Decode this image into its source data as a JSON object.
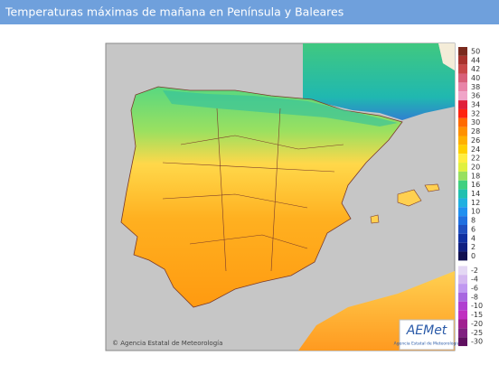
{
  "header": {
    "title": "Temperaturas máximas de mañana en Península y Baleares"
  },
  "map": {
    "credit": "© Agencia Estatal de Meteorología"
  },
  "logo": {
    "name": "AEMet",
    "subtitle": "Agencia Estatal de Meteorología"
  },
  "legend": {
    "items": [
      {
        "label": 50,
        "color": "#7a2a1e"
      },
      {
        "label": 44,
        "color": "#a8322c"
      },
      {
        "label": 42,
        "color": "#c84848"
      },
      {
        "label": 40,
        "color": "#d8607a"
      },
      {
        "label": 38,
        "color": "#e884a8"
      },
      {
        "label": 36,
        "color": "#f0a4c8"
      },
      {
        "label": 34,
        "color": "#e0203a"
      },
      {
        "label": 32,
        "color": "#ff2410"
      },
      {
        "label": 30,
        "color": "#ff6a00"
      },
      {
        "label": 28,
        "color": "#ff9000"
      },
      {
        "label": 26,
        "color": "#ffb000"
      },
      {
        "label": 24,
        "color": "#ffd000"
      },
      {
        "label": 22,
        "color": "#ffee40"
      },
      {
        "label": 20,
        "color": "#e0f040"
      },
      {
        "label": 18,
        "color": "#98e060"
      },
      {
        "label": 16,
        "color": "#40d080"
      },
      {
        "label": 14,
        "color": "#20c0b0"
      },
      {
        "label": 12,
        "color": "#20b0e0"
      },
      {
        "label": 10,
        "color": "#2090f0"
      },
      {
        "label": 8,
        "color": "#2070e0"
      },
      {
        "label": 6,
        "color": "#2050c0"
      },
      {
        "label": 4,
        "color": "#1030a0"
      },
      {
        "label": 2,
        "color": "#102080"
      },
      {
        "label": 0,
        "color": "#101050"
      },
      {
        "label": -2,
        "color": "#e4d8f4"
      },
      {
        "label": -4,
        "color": "#d4b8f0"
      },
      {
        "label": -6,
        "color": "#c098f0"
      },
      {
        "label": -8,
        "color": "#a868e0"
      },
      {
        "label": -10,
        "color": "#b040d0"
      },
      {
        "label": -15,
        "color": "#c030c0"
      },
      {
        "label": -20,
        "color": "#a02090"
      },
      {
        "label": -25,
        "color": "#802080"
      },
      {
        "label": -30,
        "color": "#601060"
      }
    ]
  }
}
